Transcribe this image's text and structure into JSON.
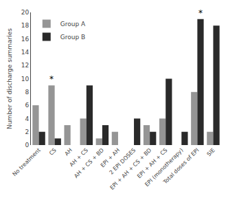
{
  "chart_data": {
    "type": "bar",
    "ylabel": "Number of discharge summaries",
    "categories": [
      "No treatment",
      "CS",
      "AH",
      "AH + CS",
      "AH + CS + BD",
      "EPI + AH",
      "2 EPI DOSES",
      "EPI + AH + CS + BD",
      "EPI + AH + CS",
      "EPI (monotherapy)",
      "Total doses of EPI",
      "SIE"
    ],
    "series": [
      {
        "name": "Group A",
        "color": "#959595",
        "values": [
          6,
          9,
          3,
          4,
          1,
          2,
          0,
          3,
          4,
          0,
          8,
          2
        ]
      },
      {
        "name": "Group B",
        "color": "#2a2a2a",
        "values": [
          2,
          1,
          0,
          9,
          3,
          0,
          4,
          2,
          10,
          2,
          19,
          18
        ]
      }
    ],
    "ylim": [
      0,
      20
    ],
    "yticks": [
      0,
      2,
      4,
      6,
      8,
      10,
      12,
      14,
      16,
      18,
      20
    ],
    "grid": false,
    "legend": "upper left",
    "annotations": [
      {
        "text": "*",
        "series": "Group A",
        "category": "CS",
        "value": 9
      },
      {
        "text": "*",
        "series": "Group B",
        "category": "Total doses of EPI",
        "value": 19
      }
    ]
  }
}
